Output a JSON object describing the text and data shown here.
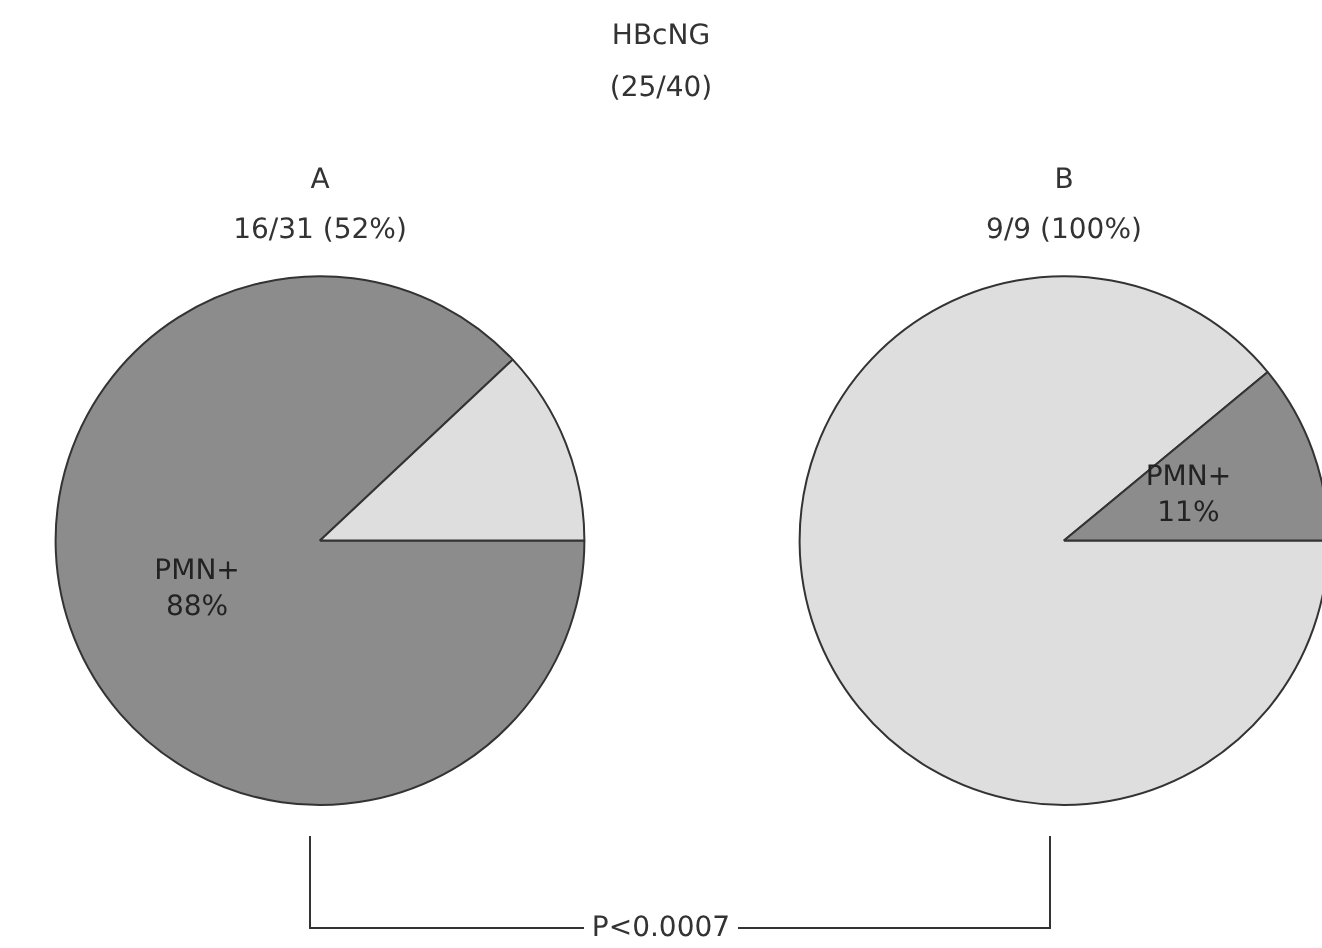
{
  "chart_data": [
    {
      "type": "pie",
      "title": "A",
      "subtitle": "16/31 (52%)",
      "categories": [
        "PMN+",
        null
      ],
      "values": [
        88,
        12
      ],
      "colors": [
        "#8c8c8c",
        "#dedede"
      ],
      "value_labels": [
        "88%",
        null
      ],
      "legend": false,
      "annotations": [
        "HBcNG",
        "(25/40)",
        "P<0.0007"
      ]
    },
    {
      "type": "pie",
      "title": "B",
      "subtitle": "9/9 (100%)",
      "categories": [
        null,
        "PMN+"
      ],
      "values": [
        89,
        11
      ],
      "colors": [
        "#dedede",
        "#8c8c8c"
      ],
      "value_labels": [
        null,
        "11%"
      ],
      "legend": false
    }
  ]
}
